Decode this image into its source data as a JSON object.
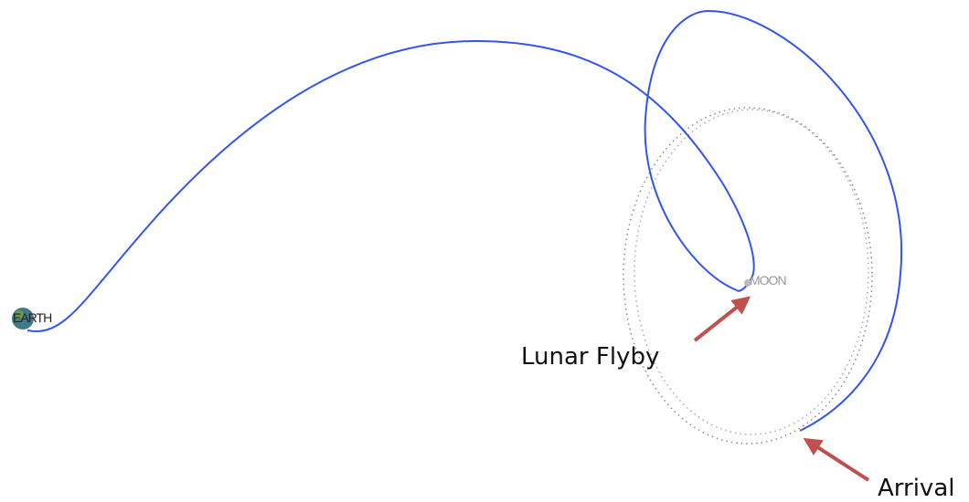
{
  "labels": {
    "earth": "EARTH",
    "moon": "MOON",
    "flyby": "Lunar Flyby",
    "arrival": "Arrival"
  }
}
